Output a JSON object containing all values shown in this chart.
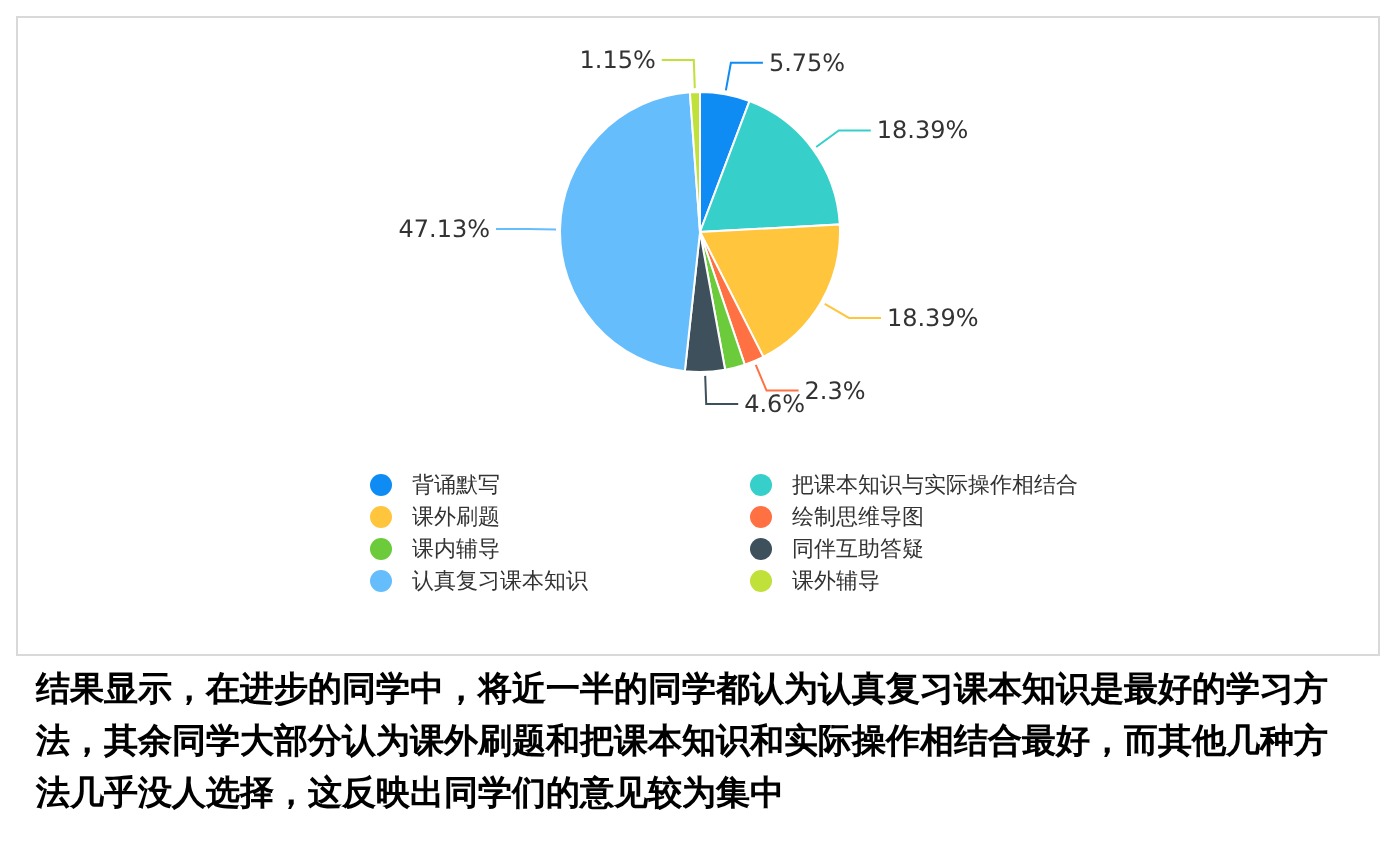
{
  "chart_data": {
    "type": "pie",
    "categories": [
      "背诵默写",
      "把课本知识与实际操作相结合",
      "课外刷题",
      "绘制思维导图",
      "课内辅导",
      "同伴互助答疑",
      "认真复习课本知识",
      "课外辅导"
    ],
    "values": [
      5.75,
      18.39,
      18.39,
      2.3,
      2.3,
      4.6,
      47.13,
      1.15
    ],
    "value_labels": [
      "5.75%",
      "18.39%",
      "18.39%",
      "2.3%",
      null,
      "4.6%",
      "47.13%",
      "1.15%"
    ],
    "colors": [
      "#0e8cf4",
      "#36cfc9",
      "#ffc53d",
      "#ff7043",
      "#6bcb3a",
      "#3e505c",
      "#66bdfc",
      "#c0e03a"
    ],
    "legend": "bottom",
    "annotations": [
      "结果显示，在进步的同学中，将近一半的同学都认为认真复习课本知识是最好的学习方法，其余同学大部分认为课外刷题和把课本知识和实际操作相结合最好，而其他几种方法几乎没人选择，这反映出同学们的意见较为集中"
    ]
  }
}
